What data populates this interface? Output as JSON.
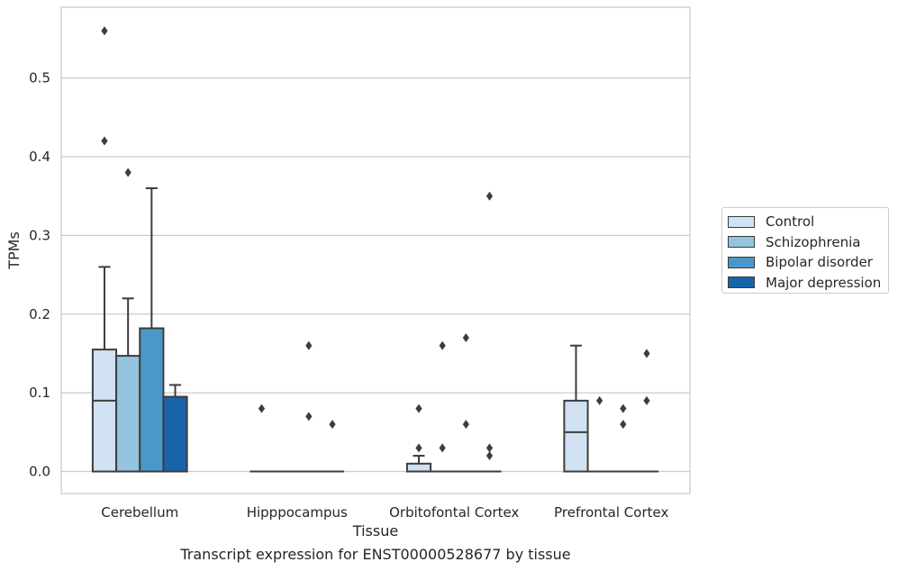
{
  "chart_data": {
    "type": "box",
    "xlabel": "Tissue",
    "ylabel": "TPMs",
    "ylim": [
      -0.028,
      0.59
    ],
    "yticks": [
      0.0,
      0.1,
      0.2,
      0.3,
      0.4,
      0.5
    ],
    "ytick_labels": [
      "0.0",
      "0.1",
      "0.2",
      "0.3",
      "0.4",
      "0.5"
    ],
    "grid": "horizontal",
    "legend_position": "right",
    "categories": [
      "Cerebellum",
      "Hipppocampus",
      "Orbitofontal Cortex",
      "Prefrontal Cortex"
    ],
    "series": [
      {
        "name": "Control",
        "color": "#d0e1f2",
        "boxes": [
          {
            "q1": 0.0,
            "median": 0.09,
            "q3": 0.155,
            "whisker_low": 0.0,
            "whisker_high": 0.26,
            "outliers": [
              0.42,
              0.56
            ]
          },
          {
            "q1": 0.0,
            "median": 0.0,
            "q3": 0.0,
            "whisker_low": 0.0,
            "whisker_high": 0.0,
            "outliers": [
              0.08
            ]
          },
          {
            "q1": 0.0,
            "median": 0.0,
            "q3": 0.01,
            "whisker_low": 0.0,
            "whisker_high": 0.02,
            "outliers": [
              0.03,
              0.08
            ]
          },
          {
            "q1": 0.0,
            "median": 0.05,
            "q3": 0.09,
            "whisker_low": 0.0,
            "whisker_high": 0.16,
            "outliers": []
          }
        ]
      },
      {
        "name": "Schizophrenia",
        "color": "#94c4df",
        "boxes": [
          {
            "q1": 0.0,
            "median": 0.0,
            "q3": 0.147,
            "whisker_low": 0.0,
            "whisker_high": 0.22,
            "outliers": [
              0.38
            ]
          },
          {
            "q1": 0.0,
            "median": 0.0,
            "q3": 0.0,
            "whisker_low": 0.0,
            "whisker_high": 0.0,
            "outliers": []
          },
          {
            "q1": 0.0,
            "median": 0.0,
            "q3": 0.0,
            "whisker_low": 0.0,
            "whisker_high": 0.0,
            "outliers": [
              0.03,
              0.16
            ]
          },
          {
            "q1": 0.0,
            "median": 0.0,
            "q3": 0.0,
            "whisker_low": 0.0,
            "whisker_high": 0.0,
            "outliers": [
              0.09
            ]
          }
        ]
      },
      {
        "name": "Bipolar disorder",
        "color": "#4a98c9",
        "boxes": [
          {
            "q1": 0.0,
            "median": 0.0,
            "q3": 0.182,
            "whisker_low": 0.0,
            "whisker_high": 0.36,
            "outliers": []
          },
          {
            "q1": 0.0,
            "median": 0.0,
            "q3": 0.0,
            "whisker_low": 0.0,
            "whisker_high": 0.0,
            "outliers": [
              0.07,
              0.16
            ]
          },
          {
            "q1": 0.0,
            "median": 0.0,
            "q3": 0.0,
            "whisker_low": 0.0,
            "whisker_high": 0.0,
            "outliers": [
              0.06,
              0.17
            ]
          },
          {
            "q1": 0.0,
            "median": 0.0,
            "q3": 0.0,
            "whisker_low": 0.0,
            "whisker_high": 0.0,
            "outliers": [
              0.06,
              0.08
            ]
          }
        ]
      },
      {
        "name": "Major depression",
        "color": "#1764ab",
        "boxes": [
          {
            "q1": 0.0,
            "median": 0.0,
            "q3": 0.095,
            "whisker_low": 0.0,
            "whisker_high": 0.11,
            "outliers": []
          },
          {
            "q1": 0.0,
            "median": 0.0,
            "q3": 0.0,
            "whisker_low": 0.0,
            "whisker_high": 0.0,
            "outliers": [
              0.06
            ]
          },
          {
            "q1": 0.0,
            "median": 0.0,
            "q3": 0.0,
            "whisker_low": 0.0,
            "whisker_high": 0.0,
            "outliers": [
              0.02,
              0.03,
              0.35
            ]
          },
          {
            "q1": 0.0,
            "median": 0.0,
            "q3": 0.0,
            "whisker_low": 0.0,
            "whisker_high": 0.0,
            "outliers": [
              0.09,
              0.15
            ]
          }
        ]
      }
    ]
  },
  "caption": "Transcript expression for ENST00000528677 by tissue"
}
